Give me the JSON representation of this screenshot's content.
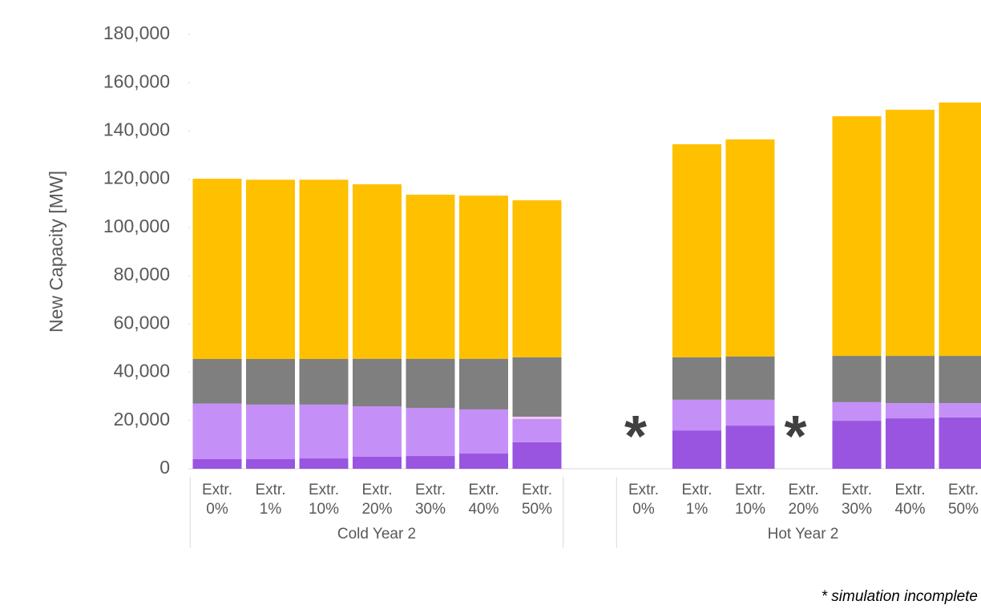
{
  "chart_data": {
    "type": "stacked_bar",
    "y_label": "New Capacity [MW]",
    "categories": [
      "Extr. 0%",
      "Extr. 1%",
      "Extr. 10%",
      "Extr. 20%",
      "Extr. 30%",
      "Extr. 40%",
      "Extr. 50%",
      "Extr. 0%",
      "Extr. 1%",
      "Extr. 10%",
      "Extr. 20%",
      "Extr. 30%",
      "Extr. 40%",
      "Extr. 50%"
    ],
    "category_groups": [
      "Cold Year 2",
      "Cold Year 2",
      "Cold Year 2",
      "Cold Year 2",
      "Cold Year 2",
      "Cold Year 2",
      "Cold Year 2",
      "Hot Year 2",
      "Hot Year 2",
      "Hot Year 2",
      "Hot Year 2",
      "Hot Year 2",
      "Hot Year 2",
      "Hot Year 2"
    ],
    "series": [
      {
        "color": "#9955e0",
        "values": [
          4000,
          4000,
          4300,
          5000,
          5300,
          6300,
          11000,
          null,
          15900,
          17900,
          null,
          19900,
          20900,
          21300
        ]
      },
      {
        "color": "#c58ff8",
        "values": [
          23000,
          22600,
          22300,
          20900,
          19900,
          18300,
          9600,
          null,
          12700,
          10700,
          null,
          7700,
          6300,
          5900
        ]
      },
      {
        "color": "#f2c4f4",
        "values": [
          0,
          0,
          0,
          0,
          0,
          0,
          1000,
          null,
          0,
          0,
          null,
          0,
          0,
          0
        ]
      },
      {
        "color": "#7f7f7f",
        "values": [
          18500,
          18900,
          18900,
          19700,
          20400,
          21000,
          24600,
          null,
          17600,
          17900,
          null,
          19200,
          19600,
          19600
        ]
      },
      {
        "color": "#ffc000",
        "values": [
          74700,
          74300,
          74300,
          72300,
          68000,
          67600,
          65100,
          null,
          88300,
          90000,
          null,
          99300,
          102000,
          105000
        ]
      }
    ],
    "incomplete_marker": "*",
    "footnote": "* simulation incomplete",
    "ylim": [
      0,
      180000
    ],
    "yticks": [
      0,
      {
        "value": 20000,
        "label": "20,000"
      },
      {
        "value": 40000,
        "label": "40,000"
      },
      {
        "value": 60000,
        "label": "60,000"
      },
      {
        "value": 80000,
        "label": "80,000"
      },
      {
        "value": 100000,
        "label": "100,000"
      },
      {
        "value": 120000,
        "label": "120,000"
      },
      {
        "value": 140000,
        "label": "140,000"
      },
      {
        "value": 160000,
        "label": "160,000"
      },
      {
        "value": 180000,
        "label": "180,000"
      }
    ]
  }
}
